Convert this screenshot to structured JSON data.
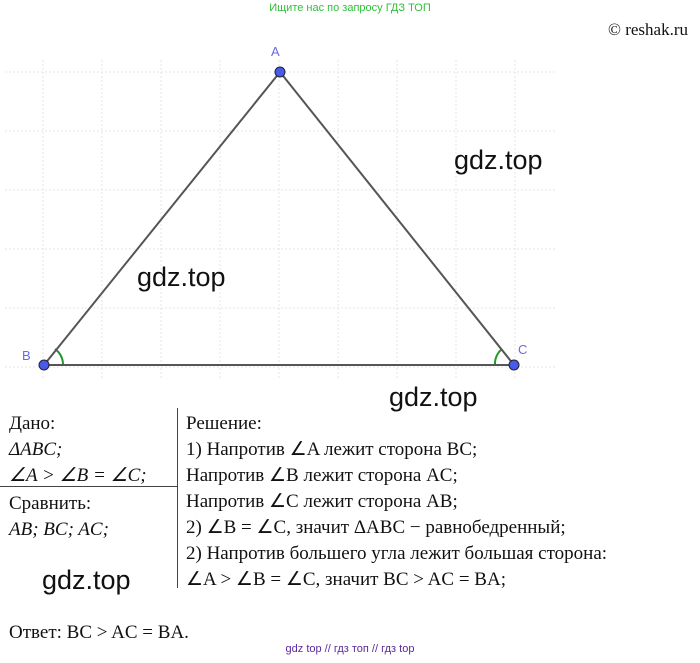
{
  "header": {
    "note": "Ищите нас по запросу ГДЗ ТОП",
    "copyright": "© reshak.ru"
  },
  "figure": {
    "points": [
      {
        "label": "A"
      },
      {
        "label": "B"
      },
      {
        "label": "C"
      }
    ],
    "point_color": "#4a5ae8",
    "label_color": "#6a6ae0",
    "angle_color": "#1f9a2a"
  },
  "watermarks": [
    "gdz.top",
    "gdz.top",
    "gdz.top",
    "gdz.top"
  ],
  "given": {
    "title": "Дано:",
    "lines": [
      "ΔABC;",
      "∠A > ∠B = ∠C;"
    ],
    "compare_title": "Сравнить:",
    "compare": "AB; BC; AC;"
  },
  "solution": {
    "title": "Решение:",
    "lines": [
      "1) Напротив ∠A лежит сторона BC;",
      "Напротив ∠B лежит сторона AC;",
      "Напротив ∠C лежит сторона AB;",
      "2) ∠B = ∠C, значит ΔABC − равнобедренный;",
      "2) Напротив большего угла лежит большая сторона:",
      "∠A > ∠B = ∠C, значит BC > AC = BA;"
    ]
  },
  "answer": "Ответ: BC > AC = BA.",
  "footer": "gdz top  //  гдз топ  //  гдз top"
}
